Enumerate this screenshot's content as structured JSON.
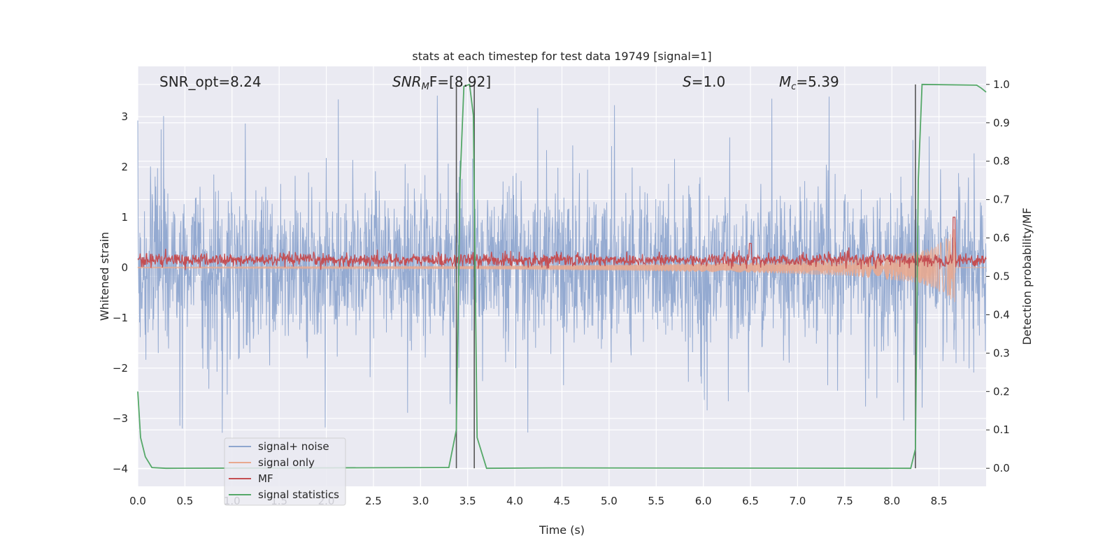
{
  "chart_data": {
    "type": "line",
    "title": "stats at each timestep for test data 19749 [signal=1]",
    "xlabel": "Time (s)",
    "ylabel": "Whitened strain",
    "y2label": "Detection probability/MF",
    "xlim": [
      0,
      9.0
    ],
    "ylim": [
      -4.35,
      4.0
    ],
    "y2lim": [
      -0.047,
      1.047
    ],
    "grid": true,
    "background": "#eaeaf2",
    "x_ticks": [
      0.0,
      0.5,
      1.0,
      1.5,
      2.0,
      2.5,
      3.0,
      3.5,
      4.0,
      4.5,
      5.0,
      5.5,
      6.0,
      6.5,
      7.0,
      7.5,
      8.0,
      8.5
    ],
    "x_tick_labels": [
      "0.0",
      "0.5",
      "1.0",
      "1.5",
      "2.0",
      "2.5",
      "3.0",
      "3.5",
      "4.0",
      "4.5",
      "5.0",
      "5.5",
      "6.0",
      "6.5",
      "7.0",
      "7.5",
      "8.0",
      "8.5"
    ],
    "y_ticks": [
      3,
      2,
      1,
      0,
      -1,
      -2,
      -3,
      -4
    ],
    "y_tick_labels": [
      "3",
      "2",
      "1",
      "0",
      "−1",
      "−2",
      "−3",
      "−4"
    ],
    "y2_ticks": [
      1.0,
      0.9,
      0.8,
      0.7,
      0.6,
      0.5,
      0.4,
      0.3,
      0.2,
      0.1,
      0.0
    ],
    "y2_tick_labels": [
      "1.0",
      "0.9",
      "0.8",
      "0.7",
      "0.6",
      "0.5",
      "0.4",
      "0.3",
      "0.2",
      "0.1",
      "0.0"
    ],
    "annotations": {
      "snr_opt": "SNR_opt=8.24",
      "snr_mf_base": "SNR",
      "snr_mf_sub": "M",
      "snr_mf_rest": "F=[8.92]",
      "s_italic": "S",
      "s_rest": "=1.0",
      "mc_base": "M",
      "mc_sub": "c",
      "mc_rest": "=5.39"
    },
    "vlines": [
      3.38,
      3.57,
      8.25
    ],
    "legend": {
      "placement": "lower-left",
      "entries": [
        {
          "label": "signal+ noise",
          "color": "#8fa6cf"
        },
        {
          "label": "signal only",
          "color": "#e8a98f"
        },
        {
          "label": "MF",
          "color": "#c44e52"
        },
        {
          "label": "signal statistics",
          "color": "#55a868"
        }
      ]
    },
    "series": [
      {
        "name": "signal+ noise",
        "axis": "left",
        "color": "#8fa6cf",
        "style": "dense noise, approx. band -1.9..2.0 with spikes to ±3.5",
        "x_range": [
          0,
          9.0
        ],
        "typical_band": [
          -1.9,
          2.0
        ],
        "extremes": [
          -3.6,
          3.55
        ]
      },
      {
        "name": "signal only",
        "axis": "left",
        "color": "#e8a98f",
        "style": "chirp with growing amplitude",
        "x": [
          0,
          3.4,
          5.0,
          6.5,
          7.5,
          8.25,
          8.45,
          8.6,
          8.66,
          8.7,
          9.0
        ],
        "amplitude": [
          0.01,
          0.03,
          0.06,
          0.1,
          0.16,
          0.3,
          0.42,
          0.62,
          0.85,
          0.0,
          0.0
        ]
      },
      {
        "name": "MF",
        "axis": "left",
        "color": "#c44e52",
        "style": "noisy trace around 0.15 with peaks",
        "baseline": 0.15,
        "noise_band": [
          0.0,
          0.35
        ],
        "peaks": [
          {
            "x": 6.5,
            "y": 0.48
          },
          {
            "x": 8.66,
            "y": 1.0
          }
        ]
      },
      {
        "name": "signal statistics",
        "axis": "right",
        "color": "#55a868",
        "x": [
          0.0,
          0.03,
          0.08,
          0.15,
          0.3,
          3.3,
          3.38,
          3.42,
          3.46,
          3.52,
          3.56,
          3.6,
          3.7,
          4.4,
          8.2,
          8.25,
          8.28,
          8.32,
          8.9,
          8.95,
          9.0
        ],
        "y": [
          0.2,
          0.08,
          0.03,
          0.002,
          0.0,
          0.002,
          0.1,
          0.75,
          0.995,
          1.0,
          0.92,
          0.08,
          0.0,
          0.001,
          0.0,
          0.05,
          0.75,
          1.0,
          0.998,
          0.99,
          0.98
        ]
      }
    ]
  }
}
